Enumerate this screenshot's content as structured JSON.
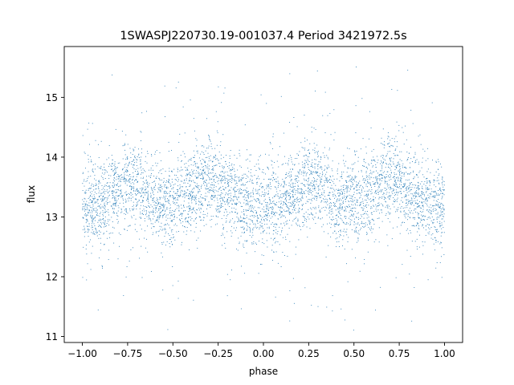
{
  "chart_data": {
    "type": "scatter",
    "title": "1SWASPJ220730.19-001037.4 Period 3421972.5s",
    "xlabel": "phase",
    "ylabel": "flux",
    "xlim": [
      -1.1,
      1.1
    ],
    "ylim": [
      10.9,
      15.85
    ],
    "x_ticks": [
      -1.0,
      -0.75,
      -0.5,
      -0.25,
      0.0,
      0.25,
      0.5,
      0.75,
      1.0
    ],
    "x_tick_labels": [
      "−1.00",
      "−0.75",
      "−0.50",
      "−0.25",
      "0.00",
      "0.25",
      "0.50",
      "0.75",
      "1.00"
    ],
    "y_ticks": [
      11,
      12,
      13,
      14,
      15
    ],
    "y_tick_labels": [
      "11",
      "12",
      "13",
      "14",
      "15"
    ],
    "grid": false,
    "legend": "none",
    "marker_color": "#1f77b4",
    "series": [
      {
        "x_range": [
          -1.0,
          1.0
        ],
        "period_in_phase": 1.0,
        "mean_flux_curve": [
          {
            "phase": 0.0,
            "flux": 13.15
          },
          {
            "phase": 0.1,
            "flux": 13.2
          },
          {
            "phase": 0.2,
            "flux": 13.5
          },
          {
            "phase": 0.3,
            "flux": 13.6
          },
          {
            "phase": 0.4,
            "flux": 13.2
          },
          {
            "phase": 0.5,
            "flux": 13.25
          },
          {
            "phase": 0.6,
            "flux": 13.45
          },
          {
            "phase": 0.7,
            "flux": 13.65
          },
          {
            "phase": 0.8,
            "flux": 13.4
          },
          {
            "phase": 0.9,
            "flux": 13.2
          },
          {
            "phase": 1.0,
            "flux": 13.15
          }
        ],
        "typical_scatter": 0.35,
        "flux_min": 11.1,
        "flux_max": 15.6
      }
    ]
  }
}
